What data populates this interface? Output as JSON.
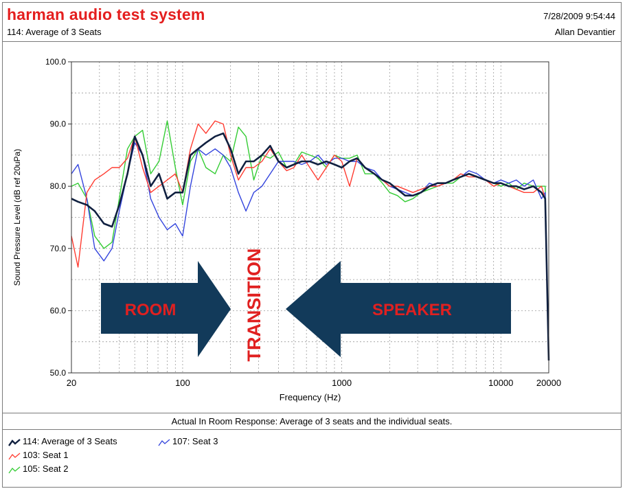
{
  "header": {
    "app_title": "harman audio test system",
    "subtitle": "114: Average of 3 Seats",
    "timestamp": "7/28/2009 9:54:44",
    "author": "Allan Devantier"
  },
  "caption": "Actual In Room Response: Average of 3 seats and the individual seats.",
  "colors": {
    "avg": "#102040",
    "seat1": "#ff3b30",
    "seat2": "#33cc33",
    "seat3": "#3344dd",
    "arrow": "#123a5a",
    "annotation_text": "#e02020"
  },
  "annotations": {
    "left_arrow_label": "ROOM",
    "center_label": "TRANSITION",
    "right_arrow_label": "SPEAKER"
  },
  "legend": [
    {
      "label": "114: Average of 3 Seats",
      "series": "avg"
    },
    {
      "label": "107: Seat 3",
      "series": "seat3"
    },
    {
      "label": "103: Seat 1",
      "series": "seat1"
    },
    {
      "label": "105: Seat 2",
      "series": "seat2"
    }
  ],
  "chart_data": {
    "type": "line",
    "title": "",
    "xlabel": "Frequency (Hz)",
    "ylabel": "Sound Pressure Level (dB ref 20uPa)",
    "xscale": "log",
    "xlim": [
      20,
      20000
    ],
    "ylim": [
      50,
      100
    ],
    "x_ticks": [
      20,
      100,
      1000,
      10000,
      20000
    ],
    "x_tick_labels": [
      "20",
      "100",
      "1000",
      "10000",
      "20000"
    ],
    "y_ticks": [
      50,
      60,
      70,
      80,
      90,
      100
    ],
    "y_tick_labels": [
      "50.0",
      "60.0",
      "70.0",
      "80.0",
      "90.0",
      "100.0"
    ],
    "grid": true,
    "x": [
      20,
      22,
      25,
      28,
      32,
      36,
      40,
      45,
      50,
      56,
      63,
      71,
      80,
      90,
      100,
      112,
      125,
      140,
      160,
      180,
      200,
      224,
      250,
      280,
      315,
      355,
      400,
      450,
      500,
      560,
      630,
      710,
      800,
      900,
      1000,
      1120,
      1250,
      1400,
      1600,
      1800,
      2000,
      2240,
      2500,
      2800,
      3150,
      3550,
      4000,
      4500,
      5000,
      5600,
      6300,
      7100,
      8000,
      9000,
      10000,
      11200,
      12500,
      14000,
      16000,
      18000,
      19000,
      20000
    ],
    "series": [
      {
        "name": "114: Average of 3 Seats",
        "key": "avg",
        "values": [
          78,
          77.5,
          77,
          76,
          74,
          73.5,
          77,
          82,
          88,
          85,
          80,
          82,
          78,
          79,
          79,
          85,
          86,
          87,
          88,
          88.5,
          86,
          82,
          84,
          84,
          85,
          86.5,
          84,
          83,
          83.5,
          84,
          84,
          83.5,
          84,
          83.5,
          83,
          84,
          84.5,
          83,
          82,
          81,
          80.5,
          79.5,
          78.5,
          78.5,
          79,
          80,
          80.5,
          80.5,
          81,
          81.5,
          82,
          81.5,
          81,
          80.5,
          80.5,
          80,
          80,
          79.5,
          80,
          79,
          78,
          52
        ]
      },
      {
        "name": "103: Seat 1",
        "key": "seat1",
        "values": [
          72,
          67,
          79,
          81,
          82,
          83,
          83,
          84.5,
          88,
          83,
          79,
          80,
          81,
          82,
          79,
          86,
          90,
          88.5,
          90.5,
          90,
          85,
          81,
          83,
          83,
          84,
          86,
          84,
          82.5,
          83,
          85,
          83,
          81,
          83,
          85,
          84,
          80,
          84.5,
          83,
          82,
          81,
          80,
          80,
          79.5,
          79,
          79.5,
          80,
          80,
          80.5,
          81,
          82,
          81.5,
          81.5,
          81,
          80,
          80.5,
          80,
          79.5,
          79,
          79,
          80,
          78,
          52
        ]
      },
      {
        "name": "105: Seat 2",
        "key": "seat2",
        "values": [
          80,
          80.5,
          78,
          72,
          70,
          71,
          78,
          86,
          88,
          89,
          82,
          84,
          90.5,
          83,
          77,
          84,
          86,
          83,
          82,
          85,
          84,
          89.5,
          88,
          81,
          85,
          84.5,
          85.5,
          83,
          83.5,
          85.5,
          85,
          84.5,
          83,
          85,
          84.5,
          84.5,
          85,
          82,
          82,
          80.5,
          79,
          78.5,
          77.5,
          78,
          79,
          79.5,
          80,
          80.5,
          80.5,
          81.5,
          82,
          81.5,
          81,
          80.5,
          80,
          80.5,
          79.5,
          80.5,
          80,
          80,
          80,
          52
        ]
      },
      {
        "name": "107: Seat 3",
        "key": "seat3",
        "values": [
          82,
          83.5,
          78,
          70,
          68,
          70,
          76,
          82,
          87,
          85,
          78,
          75,
          73,
          74,
          72,
          80,
          86,
          85,
          86,
          85,
          83,
          79,
          76,
          79,
          80,
          82,
          84,
          84,
          84,
          83.5,
          84,
          85,
          83.5,
          84.5,
          84.5,
          84,
          84,
          83,
          82.5,
          81,
          80,
          79.5,
          79,
          78.5,
          79,
          80.5,
          80,
          80.5,
          81,
          81.5,
          82.5,
          82,
          81,
          80.5,
          81,
          80.5,
          81,
          80,
          81,
          78,
          79,
          52
        ]
      }
    ]
  }
}
